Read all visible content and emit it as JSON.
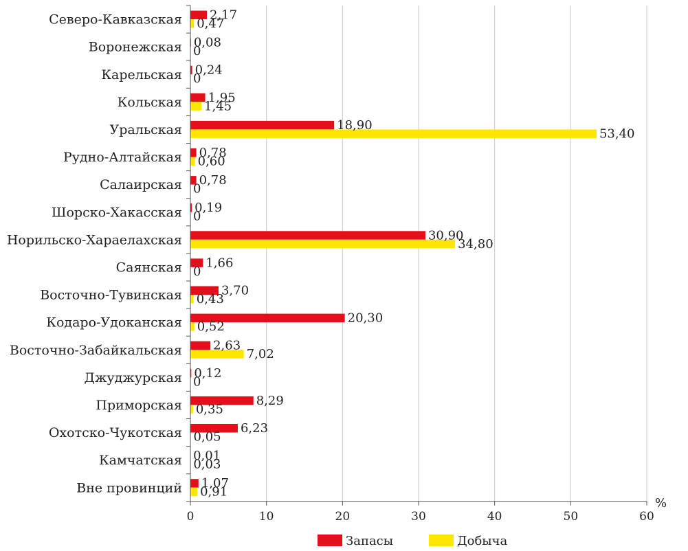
{
  "chart_data": {
    "type": "bar",
    "orientation": "horizontal",
    "categories": [
      "Северо-Кавказская",
      "Воронежская",
      "Карельская",
      "Кольская",
      "Уральская",
      "Рудно-Алтайская",
      "Салаирская",
      "Шорско-Хакасская",
      "Норильско-Хараелахская",
      "Саянская",
      "Восточно-Тувинская",
      "Кодаро-Удоканская",
      "Восточно-Забайкальская",
      "Джуджурская",
      "Приморская",
      "Охотско-Чукотская",
      "Камчатская",
      "Вне провинций"
    ],
    "series": [
      {
        "name": "Запасы",
        "color": "#e3101c",
        "values": [
          2.17,
          0.08,
          0.24,
          1.95,
          18.9,
          0.78,
          0.78,
          0.19,
          30.9,
          1.66,
          3.7,
          20.3,
          2.63,
          0.12,
          8.29,
          6.23,
          0.01,
          1.07
        ],
        "labels": [
          "2,17",
          "0,08",
          "0,24",
          "1,95",
          "18,90",
          "0,78",
          "0,78",
          "0,19",
          "30,90",
          "1,66",
          "3,70",
          "20,30",
          "2,63",
          "0,12",
          "8,29",
          "6,23",
          "0,01",
          "1,07"
        ]
      },
      {
        "name": "Добыча",
        "color": "#ffe600",
        "values": [
          0.47,
          0,
          0,
          1.45,
          53.4,
          0.6,
          0,
          0,
          34.8,
          0,
          0.43,
          0.52,
          7.02,
          0,
          0.35,
          0.05,
          0.03,
          0.91
        ],
        "labels": [
          "0,47",
          "0",
          "0",
          "1,45",
          "53,40",
          "0,60",
          "0",
          "0",
          "34,80",
          "0",
          "0,43",
          "0,52",
          "7,02",
          "0",
          "0,35",
          "0,05",
          "0,03",
          "0,91"
        ]
      }
    ],
    "xlim": [
      0,
      60
    ],
    "xticks": [
      0,
      10,
      20,
      30,
      40,
      50,
      60
    ],
    "x_unit": "%",
    "legend_position": "bottom-center",
    "grid": true
  }
}
